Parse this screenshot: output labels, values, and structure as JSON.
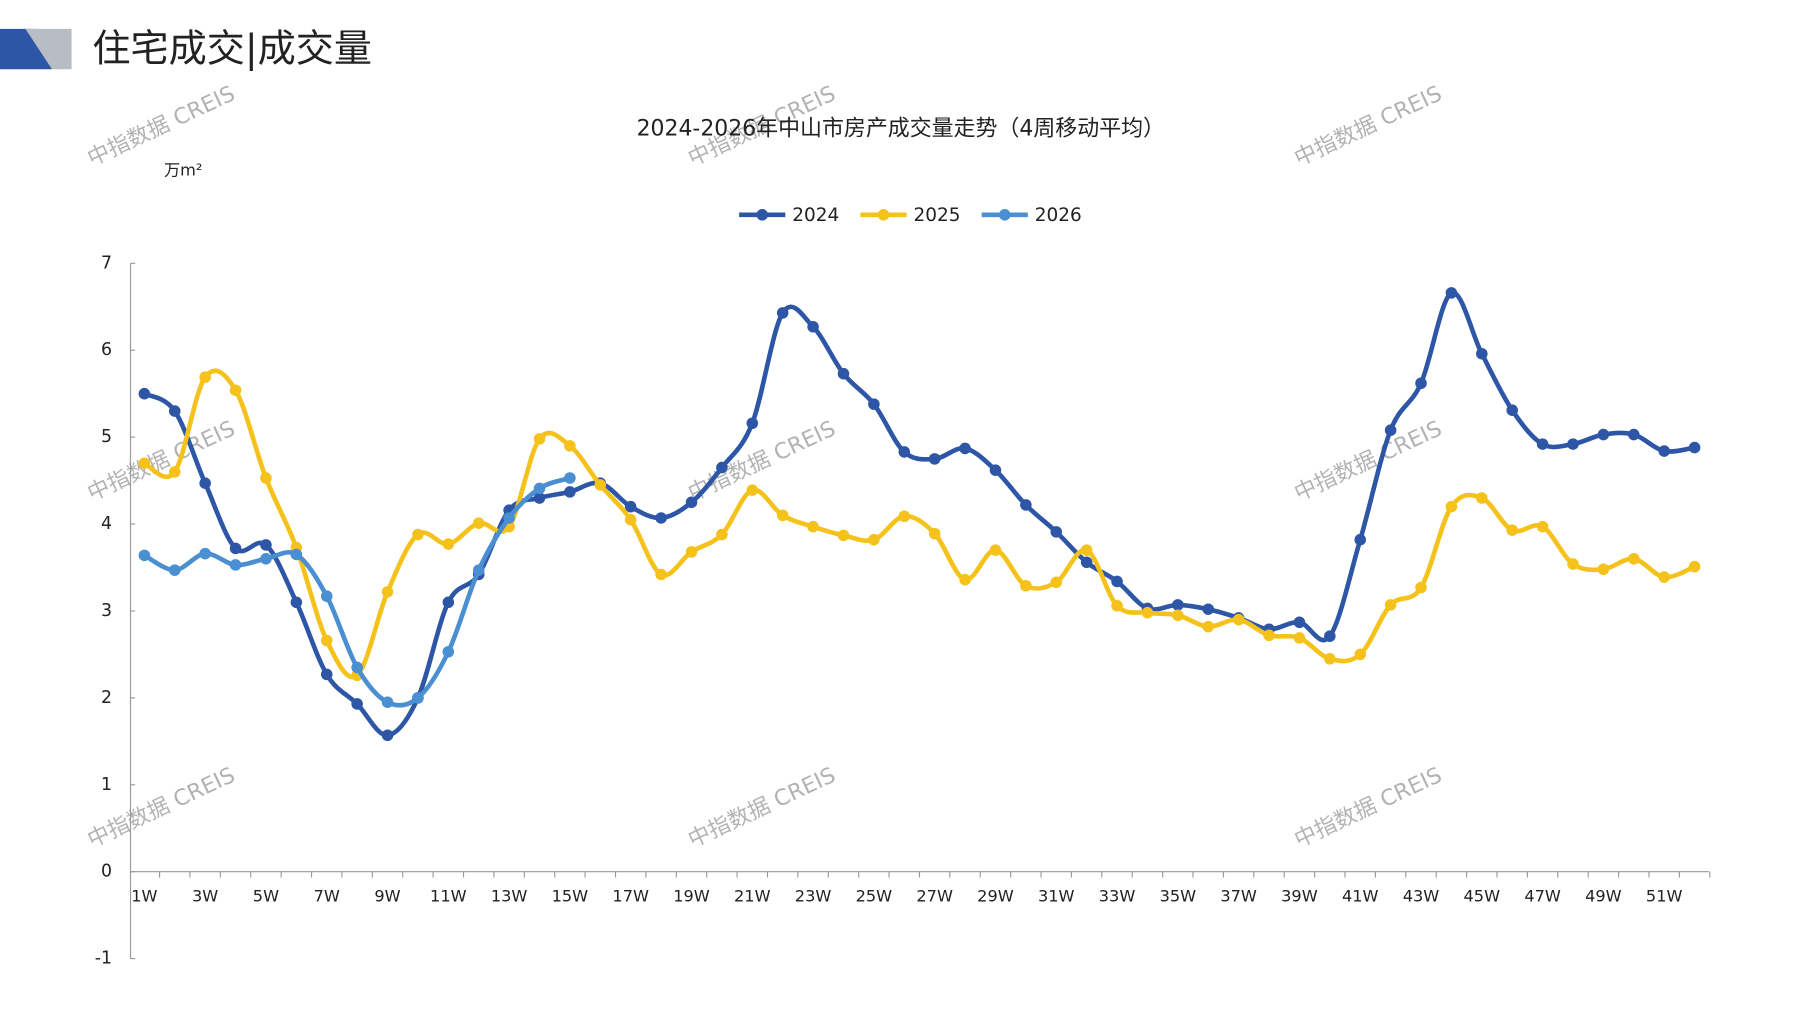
{
  "header": "住宅成交|成交量",
  "watermark": "中指数据 CREIS",
  "chart_data": {
    "type": "line",
    "title": "2024-2026年中山市房产成交量走势（4周移动平均）",
    "y_label": "万m²",
    "categories": [
      "1W",
      null,
      "3W",
      null,
      "5W",
      null,
      "7W",
      null,
      "9W",
      null,
      "11W",
      null,
      "13W",
      null,
      "15W",
      null,
      "17W",
      null,
      "19W",
      null,
      "21W",
      null,
      "23W",
      null,
      "25W",
      null,
      "27W",
      null,
      "29W",
      null,
      "31W",
      null,
      "33W",
      null,
      "35W",
      null,
      "37W",
      null,
      "39W",
      null,
      "41W",
      null,
      "43W",
      null,
      "45W",
      null,
      "47W",
      null,
      "49W",
      null,
      "51W",
      null
    ],
    "series": [
      {
        "name": "2024",
        "color": "#2e56a6",
        "values": [
          5.5,
          5.3,
          4.47,
          3.72,
          3.76,
          3.1,
          2.27,
          1.93,
          1.57,
          2.0,
          3.1,
          3.42,
          4.16,
          4.3,
          4.37,
          4.47,
          4.2,
          4.07,
          4.25,
          4.65,
          5.16,
          6.43,
          6.27,
          5.73,
          5.38,
          4.83,
          4.75,
          4.87,
          4.62,
          4.22,
          3.91,
          3.56,
          3.34,
          3.03,
          3.07,
          3.02,
          2.92,
          2.79,
          2.87,
          2.71,
          3.82,
          5.08,
          5.62,
          6.66,
          5.96,
          5.31,
          4.92,
          4.92,
          5.03,
          5.03,
          4.84,
          4.88
        ]
      },
      {
        "name": "2025",
        "color": "#f5c21b",
        "values": [
          4.7,
          4.6,
          5.69,
          5.54,
          4.53,
          3.73,
          2.66,
          2.26,
          3.22,
          3.88,
          3.77,
          4.01,
          3.97,
          4.98,
          4.9,
          4.45,
          4.05,
          3.42,
          3.68,
          3.88,
          4.39,
          4.1,
          3.97,
          3.87,
          3.82,
          4.09,
          3.89,
          3.36,
          3.7,
          3.29,
          3.33,
          3.7,
          3.06,
          2.98,
          2.95,
          2.82,
          2.9,
          2.72,
          2.69,
          2.45,
          2.5,
          3.07,
          3.27,
          4.2,
          4.3,
          3.93,
          3.97,
          3.54,
          3.48,
          3.6,
          3.39,
          3.51
        ]
      },
      {
        "name": "2026",
        "color": "#4a8fd1",
        "values": [
          3.64,
          3.47,
          3.66,
          3.53,
          3.6,
          3.65,
          3.17,
          2.35,
          1.95,
          2.0,
          2.53,
          3.47,
          4.07,
          4.41,
          4.53,
          null,
          null,
          null,
          null,
          null,
          null,
          null,
          null,
          null,
          null,
          null,
          null,
          null,
          null,
          null,
          null,
          null,
          null,
          null,
          null,
          null,
          null,
          null,
          null,
          null,
          null,
          null,
          null,
          null,
          null,
          null,
          null,
          null,
          null,
          null,
          null,
          null
        ]
      }
    ],
    "ylim": [
      -1,
      7
    ],
    "yticks": [
      -1,
      0,
      1,
      2,
      3,
      4,
      5,
      6,
      7
    ],
    "grid": false
  }
}
